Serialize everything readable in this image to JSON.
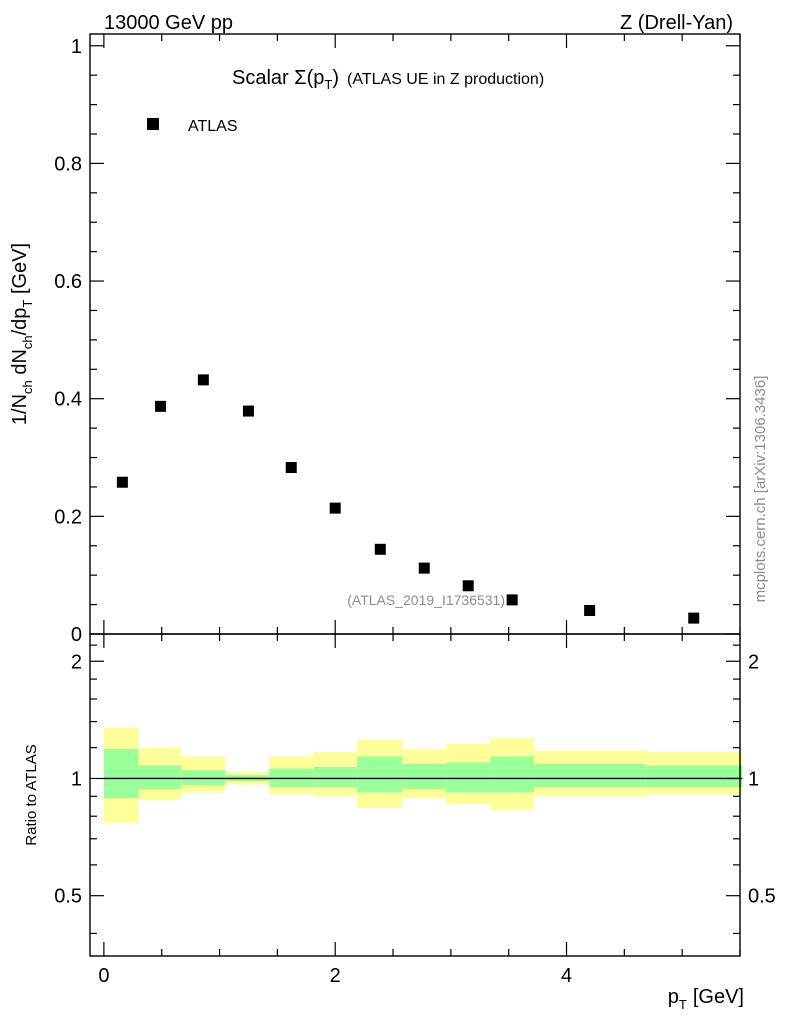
{
  "header": {
    "left": "13000 GeV pp",
    "right": "Z (Drell-Yan)"
  },
  "side_label": "mcplots.cern.ch [arXiv:1306.3436]",
  "chart_data": [
    {
      "type": "scatter",
      "title": "Scalar Σ(p_T) (ATLAS UE in Z production)",
      "title_parts": {
        "pre": "Scalar ",
        "sigma": "Σ(p",
        "sub": "T",
        "post": ")",
        "rest": "(ATLAS UE in Z production)"
      },
      "xlabel": "p_T [GeV]",
      "xlabel_parts": {
        "main": "p",
        "sub": "T",
        "unit": "[GeV]"
      },
      "ylabel": "1/N_ch dN_ch/dp_T [GeV]",
      "ylabel_parts": {
        "a": "1/N",
        "b": "ch",
        "c": " dN",
        "d": "ch",
        "e": "/dp",
        "f": "T",
        "g": " [GeV]"
      },
      "xlim": [
        -0.12,
        5.5
      ],
      "ylim": [
        0,
        1.02
      ],
      "xticks": [
        0,
        2,
        4
      ],
      "xtick_labels": [
        "0",
        "2",
        "4"
      ],
      "yticks": [
        0,
        0.2,
        0.4,
        0.6,
        0.8,
        1
      ],
      "ytick_labels": [
        "0",
        "0.2",
        "0.4",
        "0.6",
        "0.8",
        "1"
      ],
      "legend": {
        "placement": "top-left",
        "entries": [
          "ATLAS"
        ]
      },
      "annotation": "(ATLAS_2019_I1736531)",
      "series": [
        {
          "name": "ATLAS",
          "marker": "square",
          "color": "#000000",
          "x": [
            0.16,
            0.49,
            0.86,
            1.25,
            1.62,
            2.0,
            2.39,
            2.77,
            3.15,
            3.53,
            4.2,
            5.1
          ],
          "y": [
            0.258,
            0.387,
            0.432,
            0.379,
            0.283,
            0.214,
            0.144,
            0.112,
            0.082,
            0.058,
            0.04,
            0.027
          ]
        }
      ]
    },
    {
      "type": "area",
      "ylabel": "Ratio to ATLAS",
      "xlim": [
        -0.12,
        5.5
      ],
      "ylim": [
        0.35,
        2.35
      ],
      "xticks": [
        0,
        2,
        4
      ],
      "xtick_labels": [
        "0",
        "2",
        "4"
      ],
      "yticks": [
        0.5,
        1,
        2
      ],
      "ytick_labels": [
        "0.5",
        "1",
        "2"
      ],
      "reference_line": 1,
      "bins": [
        {
          "lo": 0.0,
          "hi": 0.3,
          "inner": [
            0.89,
            1.19
          ],
          "outer": [
            0.77,
            1.35
          ]
        },
        {
          "lo": 0.3,
          "hi": 0.67,
          "inner": [
            0.94,
            1.08
          ],
          "outer": [
            0.88,
            1.2
          ]
        },
        {
          "lo": 0.67,
          "hi": 1.05,
          "inner": [
            0.96,
            1.05
          ],
          "outer": [
            0.92,
            1.14
          ]
        },
        {
          "lo": 1.05,
          "hi": 1.43,
          "inner": [
            0.985,
            1.02
          ],
          "outer": [
            0.965,
            1.04
          ]
        },
        {
          "lo": 1.43,
          "hi": 1.81,
          "inner": [
            0.95,
            1.06
          ],
          "outer": [
            0.91,
            1.14
          ]
        },
        {
          "lo": 1.81,
          "hi": 2.19,
          "inner": [
            0.95,
            1.07
          ],
          "outer": [
            0.9,
            1.17
          ]
        },
        {
          "lo": 2.19,
          "hi": 2.58,
          "inner": [
            0.92,
            1.14
          ],
          "outer": [
            0.84,
            1.26
          ]
        },
        {
          "lo": 2.58,
          "hi": 2.96,
          "inner": [
            0.94,
            1.09
          ],
          "outer": [
            0.89,
            1.19
          ]
        },
        {
          "lo": 2.96,
          "hi": 3.34,
          "inner": [
            0.92,
            1.1
          ],
          "outer": [
            0.86,
            1.23
          ]
        },
        {
          "lo": 3.34,
          "hi": 3.72,
          "inner": [
            0.92,
            1.14
          ],
          "outer": [
            0.83,
            1.27
          ]
        },
        {
          "lo": 3.72,
          "hi": 4.68,
          "inner": [
            0.95,
            1.09
          ],
          "outer": [
            0.9,
            1.18
          ]
        },
        {
          "lo": 4.68,
          "hi": 5.52,
          "inner": [
            0.95,
            1.08
          ],
          "outer": [
            0.91,
            1.17
          ]
        }
      ],
      "colors": {
        "inner": "#99ff99",
        "outer": "#ffff99",
        "line": "#000000"
      }
    }
  ]
}
